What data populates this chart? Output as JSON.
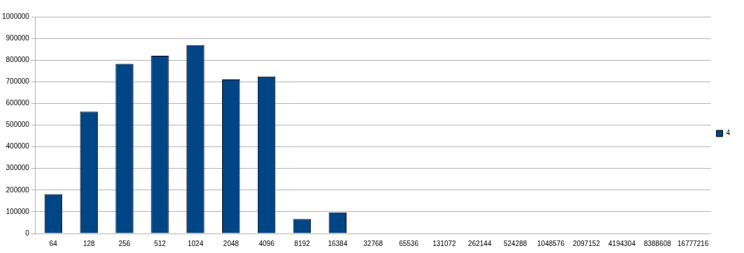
{
  "chart_data": {
    "type": "bar",
    "categories": [
      "64",
      "128",
      "256",
      "512",
      "1024",
      "2048",
      "4096",
      "8192",
      "16384",
      "32768",
      "65536",
      "131072",
      "262144",
      "524288",
      "1048576",
      "2097152",
      "4194304",
      "8388608",
      "16777216"
    ],
    "series": [
      {
        "name": "4",
        "color": "#004586",
        "values": [
          182000,
          562000,
          783000,
          820000,
          869000,
          711000,
          724000,
          67000,
          97000,
          0,
          0,
          0,
          0,
          0,
          0,
          0,
          0,
          0,
          0
        ]
      }
    ],
    "ylim": [
      0,
      1000000
    ],
    "yticks": [
      0,
      100000,
      200000,
      300000,
      400000,
      500000,
      600000,
      700000,
      800000,
      900000,
      1000000
    ],
    "grid": "y",
    "legend": "right"
  }
}
